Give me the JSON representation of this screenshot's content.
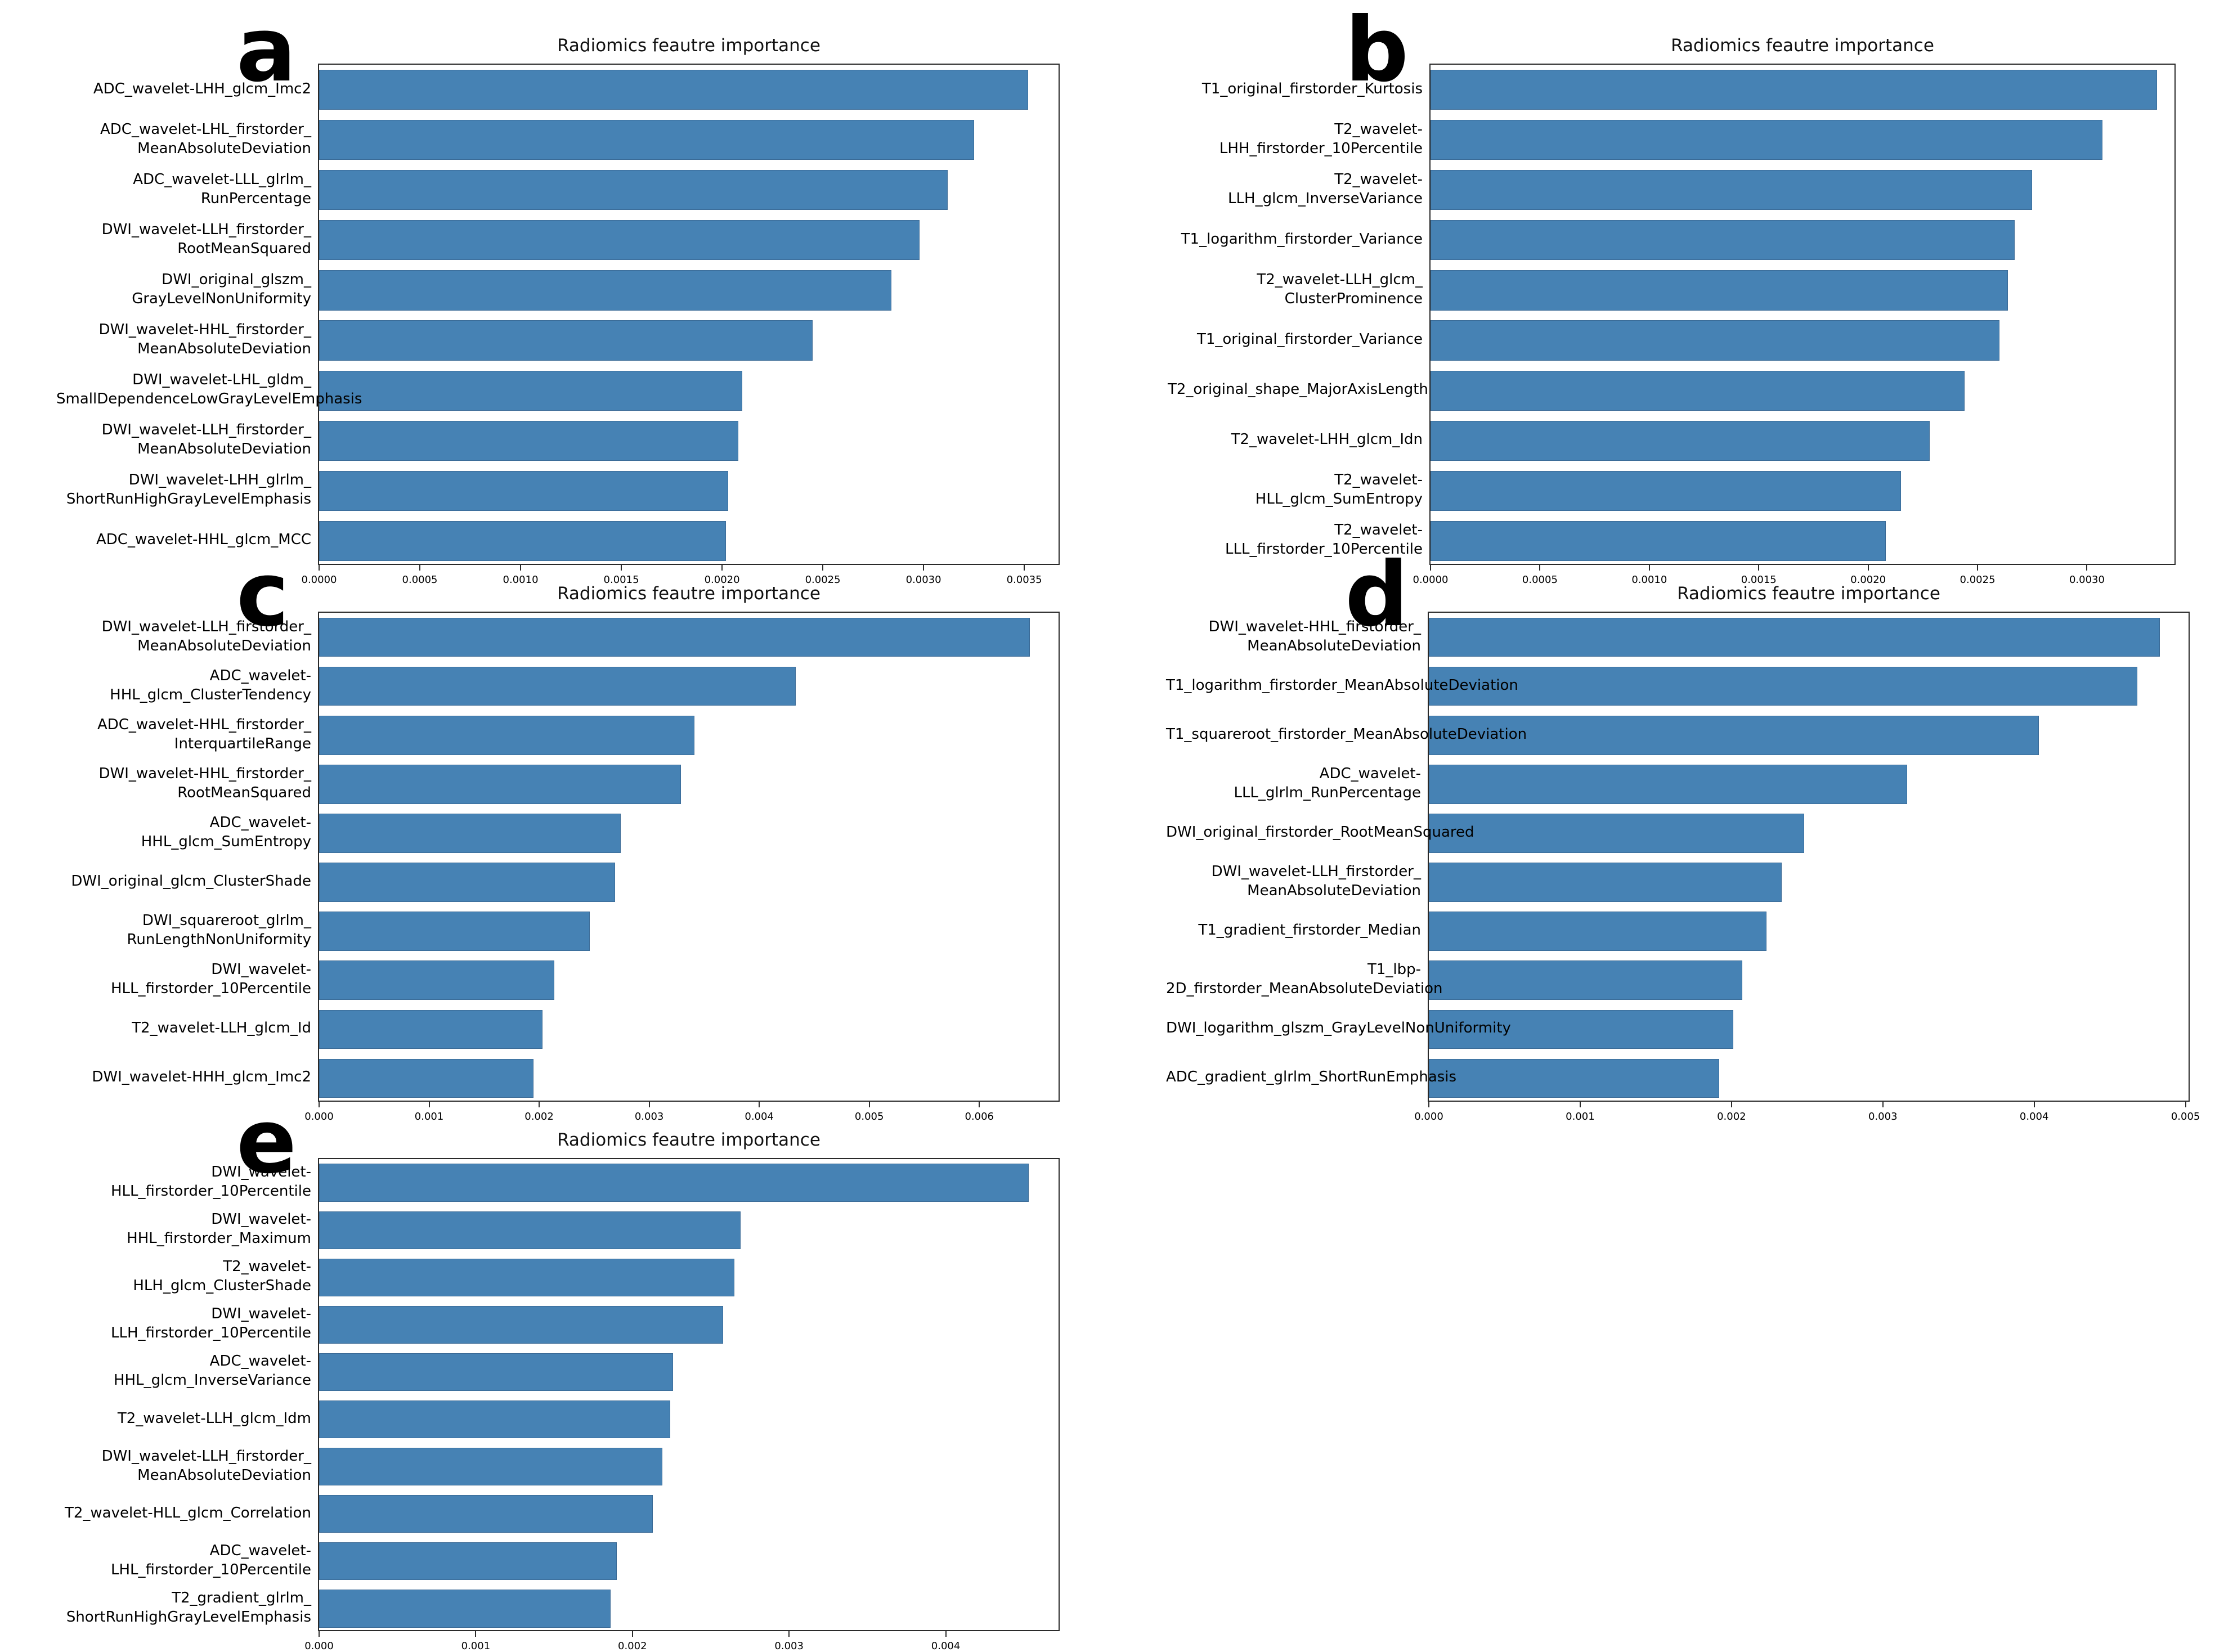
{
  "bar_color": "#4682b4",
  "axis_color": "#2a2a2a",
  "chart_data": [
    {
      "type": "bar",
      "orientation": "horizontal",
      "panel": "a",
      "title": "Radiomics feautre importance",
      "xlabel": "",
      "ylabel": "",
      "grid": false,
      "legend": "none",
      "xlim": [
        0,
        0.00367
      ],
      "categories": [
        "ADC_wavelet-LHH_glcm_Imc2",
        "ADC_wavelet-LHL_firstorder_\nMeanAbsoluteDeviation",
        "ADC_wavelet-LLL_glrlm_\nRunPercentage",
        "DWI_wavelet-LLH_firstorder_\nRootMeanSquared",
        "DWI_original_glszm_\nGrayLevelNonUniformity",
        "DWI_wavelet-HHL_firstorder_\nMeanAbsoluteDeviation",
        "DWI_wavelet-LHL_gldm_\nSmallDependenceLowGrayLevelEmphasis",
        "DWI_wavelet-LLH_firstorder_\nMeanAbsoluteDeviation",
        "DWI_wavelet-LHH_glrlm_\nShortRunHighGrayLevelEmphasis",
        "ADC_wavelet-HHL_glcm_MCC"
      ],
      "values": [
        0.00352,
        0.00325,
        0.00312,
        0.00298,
        0.00284,
        0.00245,
        0.0021,
        0.00208,
        0.00203,
        0.00202
      ],
      "x_tick_labels": [
        "0.0000",
        "0.0005",
        "0.0010",
        "0.0015",
        "0.0020",
        "0.0025",
        "0.0030",
        "0.0035"
      ],
      "x_tick_values": [
        0,
        0.0005,
        0.001,
        0.0015,
        0.002,
        0.0025,
        0.003,
        0.0035
      ]
    },
    {
      "type": "bar",
      "orientation": "horizontal",
      "panel": "b",
      "title": "Radiomics feautre importance",
      "xlabel": "",
      "ylabel": "",
      "grid": false,
      "legend": "none",
      "xlim": [
        0,
        0.0034
      ],
      "categories": [
        "T1_original_firstorder_Kurtosis",
        "T2_wavelet-LHH_firstorder_10Percentile",
        "T2_wavelet-LLH_glcm_InverseVariance",
        "T1_logarithm_firstorder_Variance",
        "T2_wavelet-LLH_glcm_\nClusterProminence",
        "T1_original_firstorder_Variance",
        "T2_original_shape_MajorAxisLength",
        "T2_wavelet-LHH_glcm_Idn",
        "T2_wavelet-HLL_glcm_SumEntropy",
        "T2_wavelet-LLL_firstorder_10Percentile"
      ],
      "values": [
        0.00332,
        0.00307,
        0.00275,
        0.00267,
        0.00264,
        0.0026,
        0.00244,
        0.00228,
        0.00215,
        0.00208
      ],
      "x_tick_labels": [
        "0.0000",
        "0.0005",
        "0.0010",
        "0.0015",
        "0.0020",
        "0.0025",
        "0.0030"
      ],
      "x_tick_values": [
        0,
        0.0005,
        0.001,
        0.0015,
        0.002,
        0.0025,
        0.003
      ]
    },
    {
      "type": "bar",
      "orientation": "horizontal",
      "panel": "c",
      "title": "Radiomics feautre importance",
      "xlabel": "",
      "ylabel": "",
      "grid": false,
      "legend": "none",
      "xlim": [
        0,
        0.00672
      ],
      "categories": [
        "DWI_wavelet-LLH_firstorder_\nMeanAbsoluteDeviation",
        "ADC_wavelet-HHL_glcm_ClusterTendency",
        "ADC_wavelet-HHL_firstorder_\nInterquartileRange",
        "DWI_wavelet-HHL_firstorder_\nRootMeanSquared",
        "ADC_wavelet-HHL_glcm_SumEntropy",
        "DWI_original_glcm_ClusterShade",
        "DWI_squareroot_glrlm_\nRunLengthNonUniformity",
        "DWI_wavelet-HLL_firstorder_10Percentile",
        "T2_wavelet-LLH_glcm_Id",
        "DWI_wavelet-HHH_glcm_Imc2"
      ],
      "values": [
        0.00646,
        0.00433,
        0.00341,
        0.00329,
        0.00274,
        0.00269,
        0.00246,
        0.00214,
        0.00203,
        0.00195
      ],
      "x_tick_labels": [
        "0.000",
        "0.001",
        "0.002",
        "0.003",
        "0.004",
        "0.005",
        "0.006"
      ],
      "x_tick_values": [
        0,
        0.001,
        0.002,
        0.003,
        0.004,
        0.005,
        0.006
      ]
    },
    {
      "type": "bar",
      "orientation": "horizontal",
      "panel": "d",
      "title": "Radiomics feautre importance",
      "xlabel": "",
      "ylabel": "",
      "grid": false,
      "legend": "none",
      "xlim": [
        0,
        0.00502
      ],
      "categories": [
        "DWI_wavelet-HHL_firstorder_\nMeanAbsoluteDeviation",
        "T1_logarithm_firstorder_MeanAbsoluteDeviation",
        "T1_squareroot_firstorder_MeanAbsoluteDeviation",
        "ADC_wavelet-LLL_glrlm_RunPercentage",
        "DWI_original_firstorder_RootMeanSquared",
        "DWI_wavelet-LLH_firstorder_\nMeanAbsoluteDeviation",
        "T1_gradient_firstorder_Median",
        "T1_lbp-2D_firstorder_MeanAbsoluteDeviation",
        "DWI_logarithm_glszm_GrayLevelNonUniformity",
        "ADC_gradient_glrlm_ShortRunEmphasis"
      ],
      "values": [
        0.00483,
        0.00468,
        0.00403,
        0.00316,
        0.00248,
        0.00233,
        0.00223,
        0.00207,
        0.00201,
        0.00192
      ],
      "x_tick_labels": [
        "0.000",
        "0.001",
        "0.002",
        "0.003",
        "0.004",
        "0.005"
      ],
      "x_tick_values": [
        0,
        0.001,
        0.002,
        0.003,
        0.004,
        0.005
      ]
    },
    {
      "type": "bar",
      "orientation": "horizontal",
      "panel": "e",
      "title": "Radiomics feautre importance",
      "xlabel": "",
      "ylabel": "",
      "grid": false,
      "legend": "none",
      "xlim": [
        0,
        0.00472
      ],
      "categories": [
        "DWI_wavelet-HLL_firstorder_10Percentile",
        "DWI_wavelet-HHL_firstorder_Maximum",
        "T2_wavelet-HLH_glcm_ClusterShade",
        "DWI_wavelet-LLH_firstorder_10Percentile",
        "ADC_wavelet-HHL_glcm_InverseVariance",
        "T2_wavelet-LLH_glcm_Idm",
        "DWI_wavelet-LLH_firstorder_\nMeanAbsoluteDeviation",
        "T2_wavelet-HLL_glcm_Correlation",
        "ADC_wavelet-LHL_firstorder_10Percentile",
        "T2_gradient_glrlm_\nShortRunHighGrayLevelEmphasis"
      ],
      "values": [
        0.00453,
        0.00269,
        0.00265,
        0.00258,
        0.00226,
        0.00224,
        0.00219,
        0.00213,
        0.0019,
        0.00186
      ],
      "x_tick_labels": [
        "0.000",
        "0.001",
        "0.002",
        "0.003",
        "0.004"
      ],
      "x_tick_values": [
        0,
        0.001,
        0.002,
        0.003,
        0.004
      ]
    }
  ]
}
